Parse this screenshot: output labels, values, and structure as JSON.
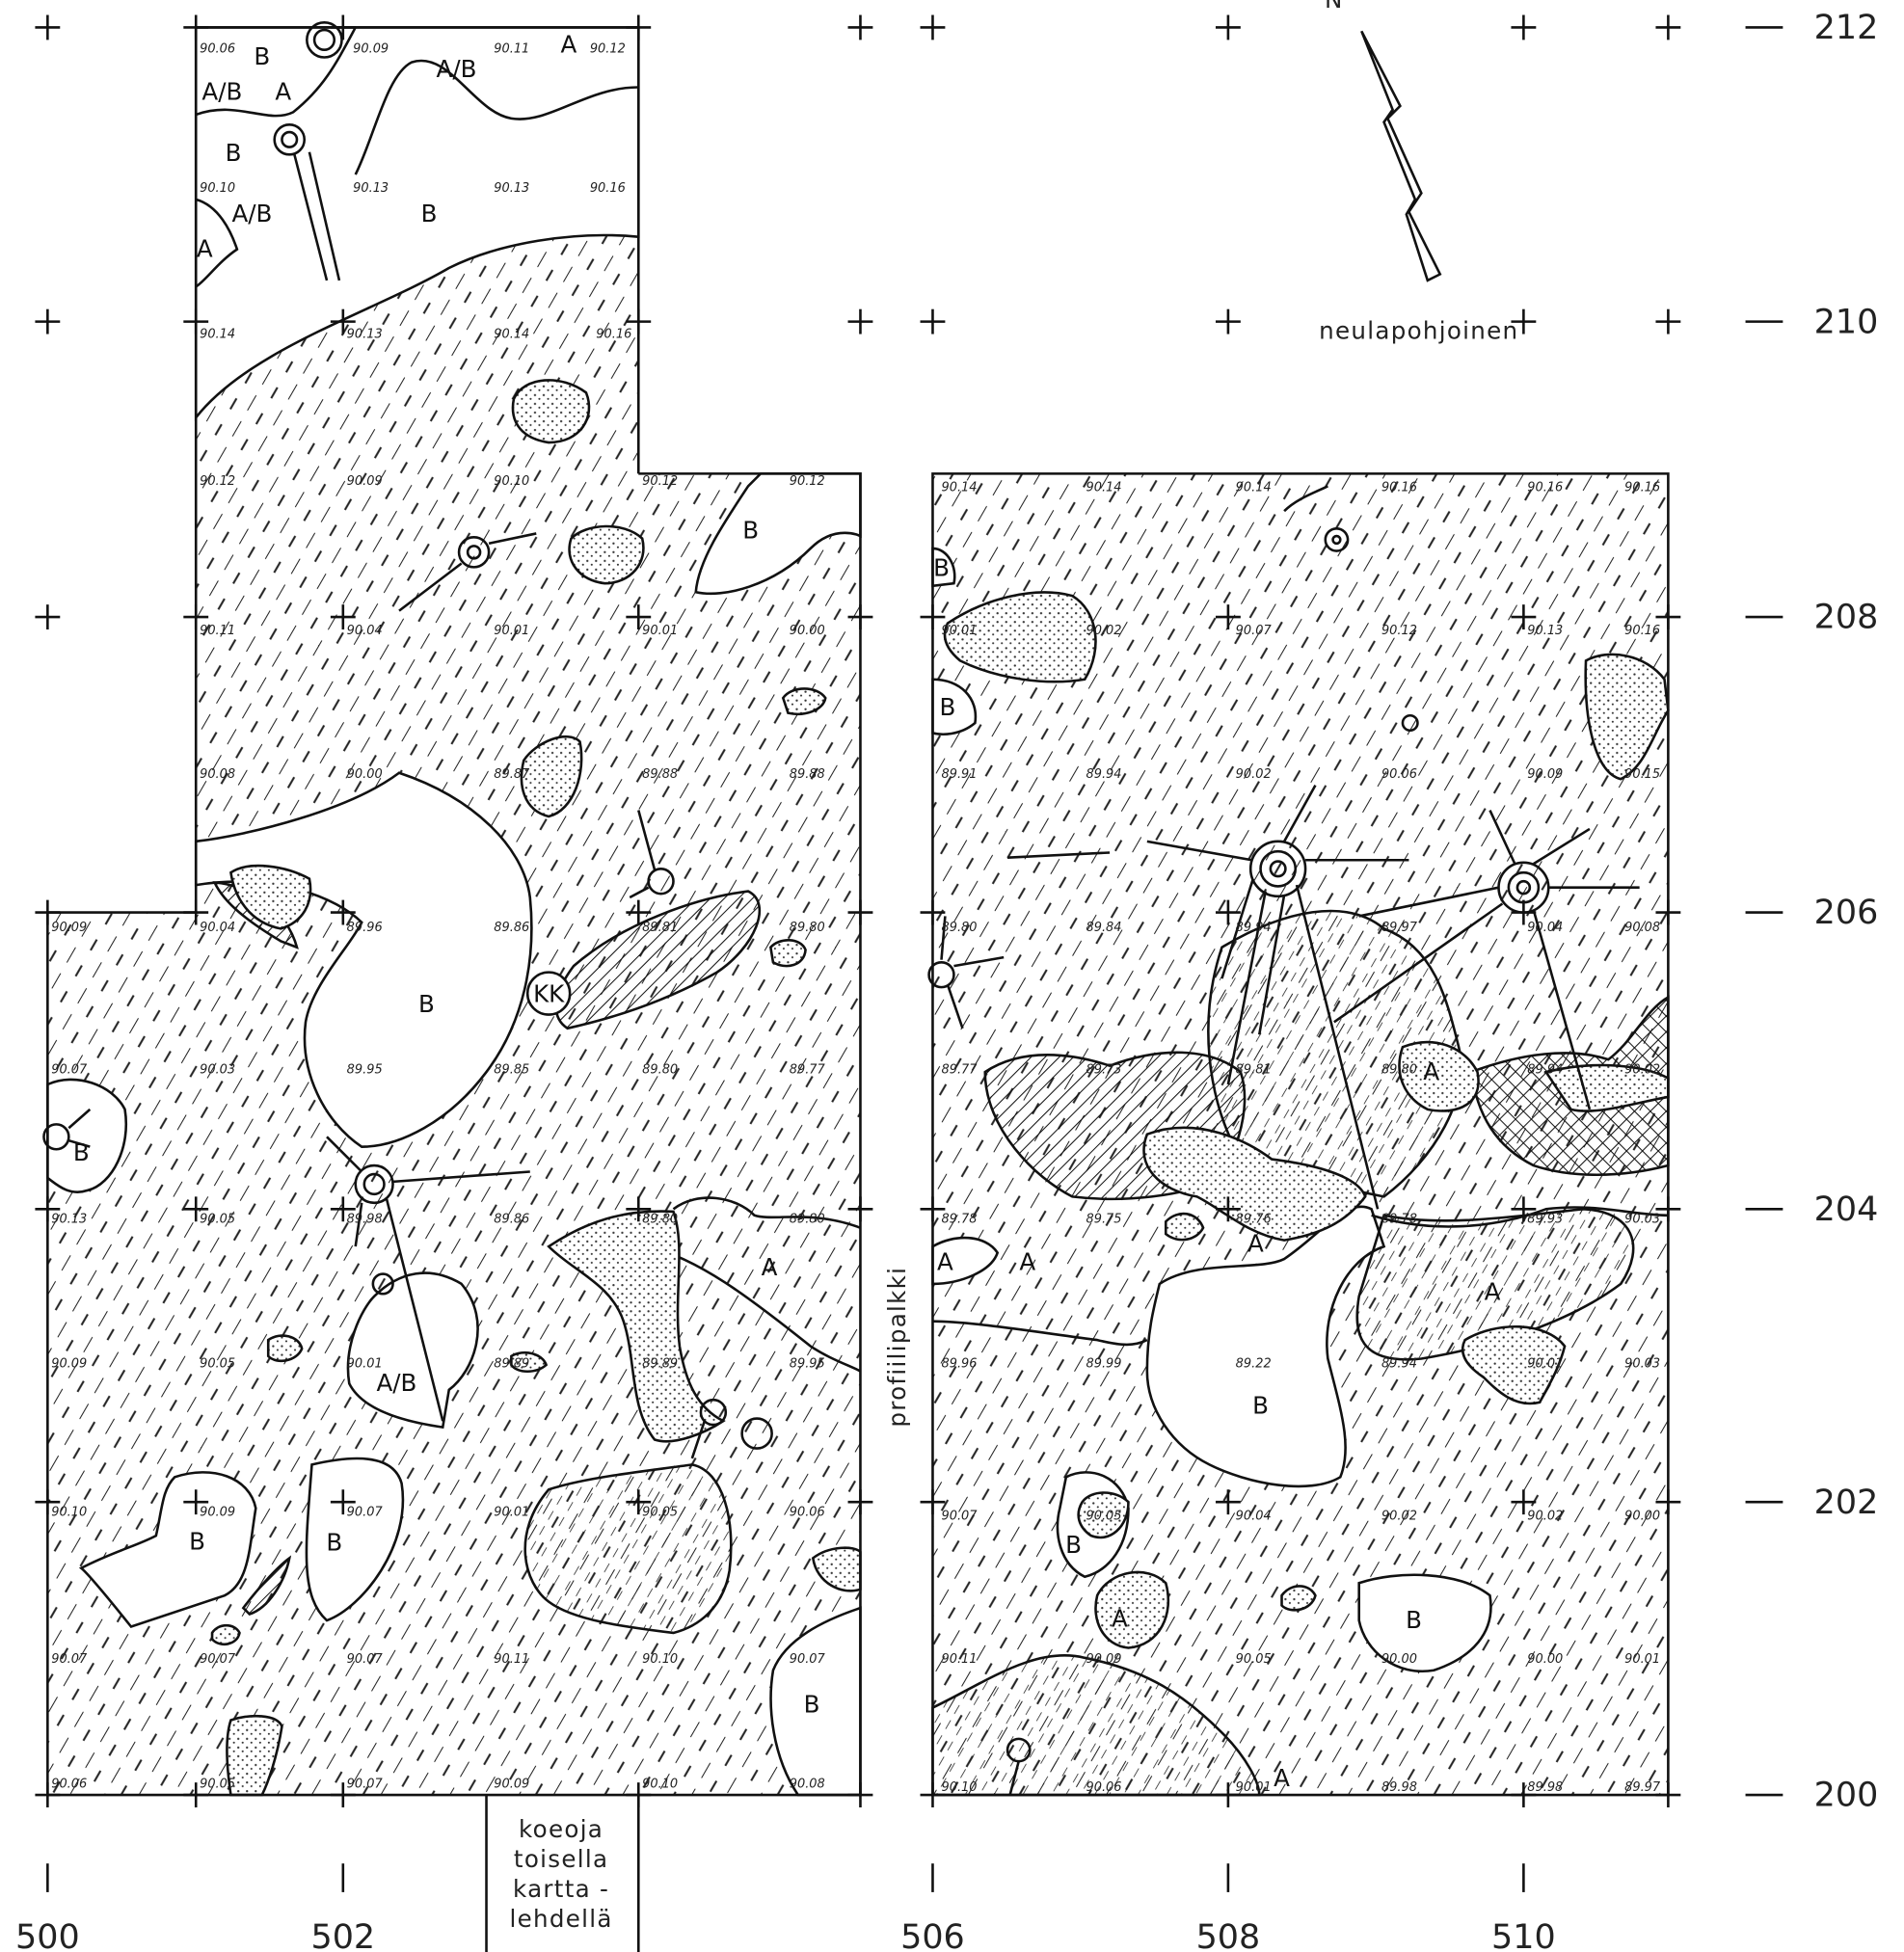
{
  "north_arrow": {
    "label": "N",
    "caption": "neulapohjoinen"
  },
  "y_axis": [
    "212",
    "210",
    "208",
    "206",
    "204",
    "202",
    "200"
  ],
  "x_axis": [
    "500",
    "502",
    "506",
    "508",
    "510"
  ],
  "profile_label": "profiilipalkki",
  "trench_note": [
    "koeoja",
    "toisella",
    "kartta -",
    "lehdellä"
  ],
  "elevations": [
    "90.06",
    "90.09",
    "90.11",
    "90.12",
    "90.10",
    "90.13",
    "90.13",
    "90.16",
    "90.14",
    "90.13",
    "90.14",
    "90.16",
    "90.12",
    "90.09",
    "90.10",
    "90.12",
    "90.12",
    "90.11",
    "90.04",
    "90.01",
    "90.01",
    "90.00",
    "90.08",
    "90.00",
    "89.87",
    "89.88",
    "89.88",
    "90.09",
    "90.04",
    "89.96",
    "89.86",
    "89.81",
    "89.80",
    "90.07",
    "90.03",
    "89.95",
    "89.85",
    "89.80",
    "89.77",
    "90.13",
    "90.05",
    "89.98",
    "89.86",
    "89.80",
    "89.80",
    "90.09",
    "90.05",
    "90.01",
    "89.89",
    "89.89",
    "89.95",
    "90.10",
    "90.09",
    "90.07",
    "90.01",
    "90.05",
    "90.06",
    "90.07",
    "90.07",
    "90.07",
    "90.11",
    "90.10",
    "90.07",
    "90.06",
    "90.05",
    "90.07",
    "90.09",
    "90.10",
    "90.08",
    "90.14",
    "90.14",
    "90.14",
    "90.16",
    "90.16",
    "90.16",
    "90.01",
    "90.02",
    "90.07",
    "90.12",
    "90.13",
    "90.16",
    "89.91",
    "89.94",
    "90.02",
    "90.06",
    "90.09",
    "90.15",
    "89.80",
    "89.84",
    "89.94",
    "89.97",
    "90.04",
    "90.08",
    "89.77",
    "89.73",
    "89.81",
    "89.80",
    "89.94",
    "90.02",
    "89.78",
    "89.75",
    "89.76",
    "89.78",
    "89.93",
    "90.03",
    "89.96",
    "89.99",
    "89.22",
    "89.94",
    "90.01",
    "90.03",
    "90.07",
    "90.05",
    "90.04",
    "90.02",
    "90.02",
    "90.00",
    "90.11",
    "90.09",
    "90.05",
    "90.00",
    "90.00",
    "90.01",
    "90.10",
    "90.06",
    "90.01",
    "89.98",
    "89.98",
    "89.97"
  ],
  "area_labels": [
    "B",
    "A",
    "A/B",
    "A/B",
    "A",
    "B",
    "A/B",
    "B",
    "A",
    "B",
    "B",
    "KK",
    "B",
    "A/B",
    "A",
    "B",
    "B",
    "B",
    "B",
    "B",
    "A",
    "A",
    "A",
    "A",
    "A",
    "B",
    "B",
    "A",
    "B",
    "A"
  ]
}
